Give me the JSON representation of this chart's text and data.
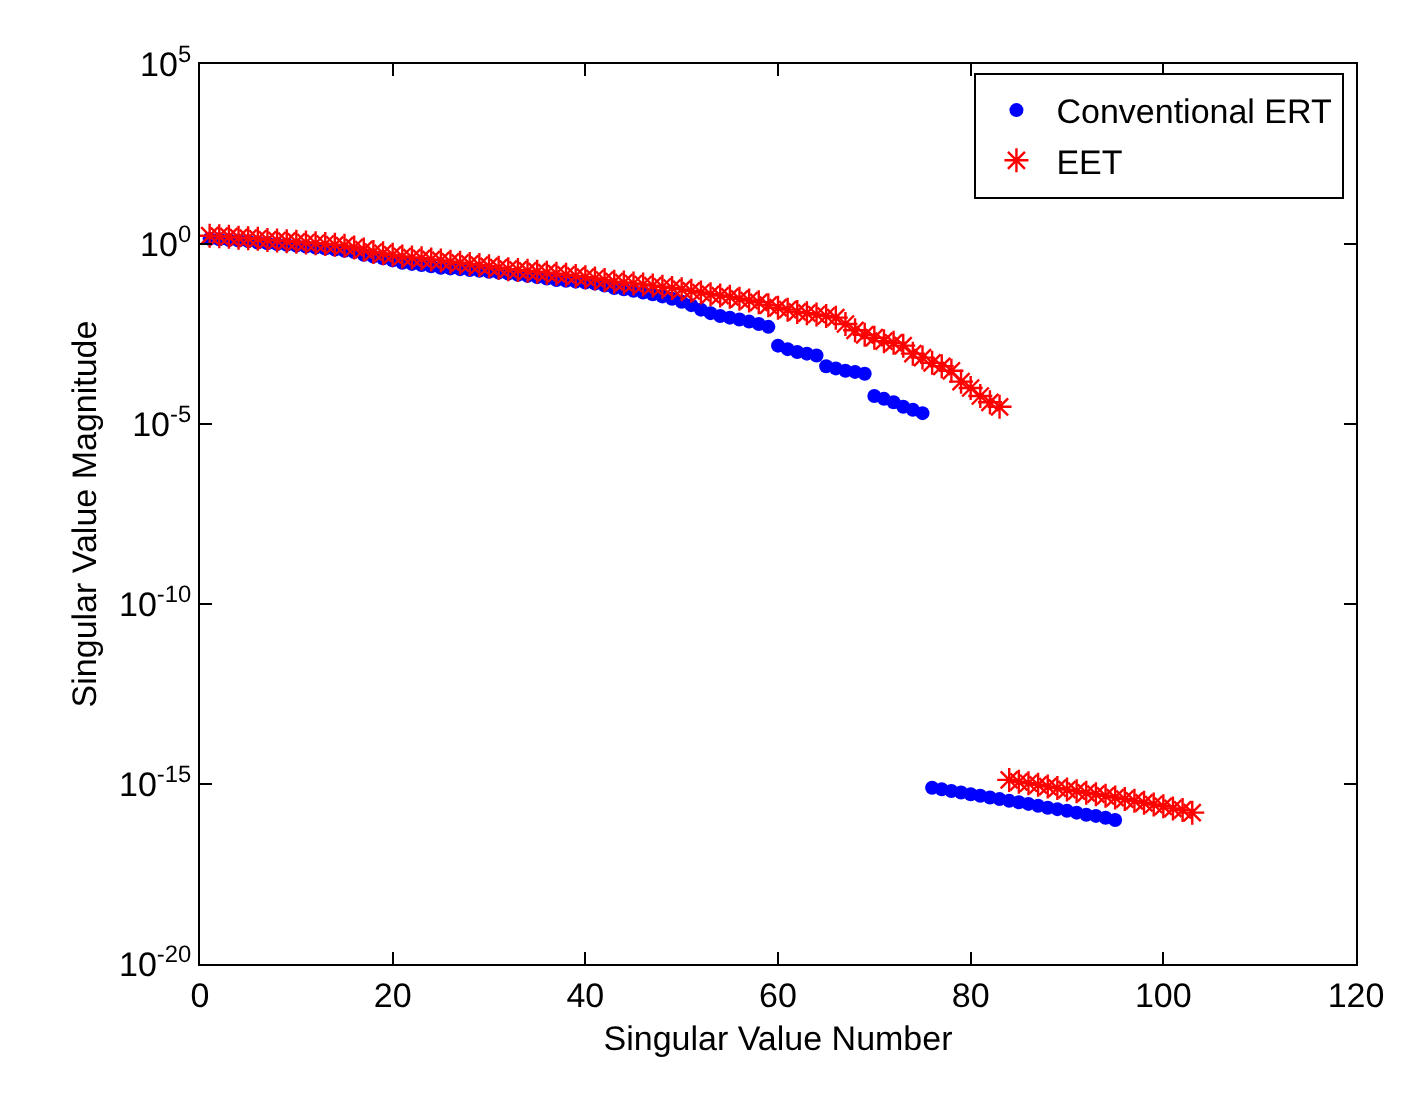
{
  "chart_data": {
    "type": "scatter",
    "xlabel": "Singular Value Number",
    "ylabel": "Singular Value Magnitude",
    "log": "y",
    "grid": false,
    "legend": "top right",
    "xlim": [
      0,
      120
    ],
    "xticks": [
      0,
      20,
      40,
      60,
      80,
      100,
      120
    ],
    "ylim": [
      1e-20,
      100000.0
    ],
    "yticks": [
      {
        "value": 1e-20,
        "label": "10$^{-20}$"
      },
      {
        "value": 1e-15,
        "label": "10$^{-15}$"
      },
      {
        "value": 1e-10,
        "label": "10$^{-10}$"
      },
      {
        "value": 1e-05,
        "label": "10$^{-5}$"
      },
      {
        "value": 1,
        "label": "10$^{0}$"
      },
      {
        "value": 100000.0,
        "label": "10$^{5}$"
      }
    ],
    "series": [
      {
        "name": "Conventional ERT",
        "color": "#0000ff",
        "marker": "circle",
        "x": [
          1,
          2,
          3,
          4,
          5,
          6,
          7,
          8,
          9,
          10,
          11,
          12,
          13,
          14,
          15,
          16,
          17,
          18,
          19,
          20,
          21,
          22,
          23,
          24,
          25,
          26,
          27,
          28,
          29,
          30,
          31,
          32,
          33,
          34,
          35,
          36,
          37,
          38,
          39,
          40,
          41,
          42,
          43,
          44,
          45,
          46,
          47,
          48,
          49,
          50,
          51,
          52,
          53,
          54,
          55,
          56,
          57,
          58,
          59,
          60,
          61,
          62,
          63,
          64,
          65,
          66,
          67,
          68,
          69,
          70,
          71,
          72,
          73,
          74,
          75,
          76,
          77,
          78,
          79,
          80,
          81,
          82,
          83,
          84,
          85,
          86,
          87,
          88,
          89,
          90,
          91,
          92,
          93,
          94,
          95
        ],
        "values": [
          1.4,
          1.35,
          1.3,
          1.25,
          1.2,
          1.1,
          1.05,
          1.0,
          0.95,
          0.9,
          0.85,
          0.8,
          0.75,
          0.7,
          0.65,
          0.6,
          0.5,
          0.45,
          0.4,
          0.35,
          0.3,
          0.28,
          0.26,
          0.24,
          0.22,
          0.21,
          0.2,
          0.19,
          0.18,
          0.17,
          0.16,
          0.15,
          0.14,
          0.13,
          0.12,
          0.11,
          0.1,
          0.095,
          0.09,
          0.085,
          0.08,
          0.07,
          0.06,
          0.055,
          0.05,
          0.045,
          0.04,
          0.035,
          0.03,
          0.025,
          0.02,
          0.015,
          0.012,
          0.01,
          0.009,
          0.008,
          0.007,
          0.006,
          0.005,
          0.0015,
          0.0012,
          0.001,
          0.0009,
          0.0008,
          0.0004,
          0.00035,
          0.0003,
          0.00028,
          0.00025,
          6e-05,
          5e-05,
          4e-05,
          3e-05,
          2.5e-05,
          2e-05,
          7.9e-16,
          7.1e-16,
          6.4e-16,
          5.8e-16,
          5.2e-16,
          4.7e-16,
          4.2e-16,
          3.8e-16,
          3.4e-16,
          3.1e-16,
          2.8e-16,
          2.5e-16,
          2.2e-16,
          2e-16,
          1.8e-16,
          1.6e-16,
          1.4e-16,
          1.3e-16,
          1.15e-16,
          1e-16
        ]
      },
      {
        "name": "EET",
        "color": "#ff0000",
        "marker": "cross",
        "x": [
          1,
          2,
          3,
          4,
          5,
          6,
          7,
          8,
          9,
          10,
          11,
          12,
          13,
          14,
          15,
          16,
          17,
          18,
          19,
          20,
          21,
          22,
          23,
          24,
          25,
          26,
          27,
          28,
          29,
          30,
          31,
          32,
          33,
          34,
          35,
          36,
          37,
          38,
          39,
          40,
          41,
          42,
          43,
          44,
          45,
          46,
          47,
          48,
          49,
          50,
          51,
          52,
          53,
          54,
          55,
          56,
          57,
          58,
          59,
          60,
          61,
          62,
          63,
          64,
          65,
          66,
          67,
          68,
          69,
          70,
          71,
          72,
          73,
          74,
          75,
          76,
          77,
          78,
          79,
          80,
          81,
          82,
          83,
          84,
          85,
          86,
          87,
          88,
          89,
          90,
          91,
          92,
          93,
          94,
          95,
          96,
          97,
          98,
          99,
          100,
          101,
          102,
          103
        ],
        "values": [
          1.7,
          1.65,
          1.6,
          1.5,
          1.45,
          1.4,
          1.3,
          1.25,
          1.2,
          1.15,
          1.1,
          1.05,
          1.0,
          0.95,
          0.9,
          0.8,
          0.7,
          0.6,
          0.55,
          0.5,
          0.45,
          0.42,
          0.4,
          0.37,
          0.35,
          0.32,
          0.3,
          0.28,
          0.26,
          0.24,
          0.22,
          0.2,
          0.19,
          0.18,
          0.17,
          0.16,
          0.15,
          0.14,
          0.13,
          0.12,
          0.11,
          0.1,
          0.09,
          0.085,
          0.08,
          0.075,
          0.07,
          0.065,
          0.06,
          0.055,
          0.05,
          0.045,
          0.04,
          0.037,
          0.034,
          0.03,
          0.027,
          0.024,
          0.02,
          0.017,
          0.015,
          0.013,
          0.012,
          0.011,
          0.01,
          0.009,
          0.006,
          0.004,
          0.003,
          0.0025,
          0.002,
          0.0018,
          0.0015,
          0.0009,
          0.0007,
          0.0005,
          0.0004,
          0.0003,
          0.00015,
          0.0001,
          6e-05,
          4e-05,
          3e-05,
          1.3e-15,
          1.15e-15,
          1.05e-15,
          9.5e-16,
          8.5e-16,
          7.7e-16,
          7e-16,
          6.3e-16,
          5.7e-16,
          5.2e-16,
          4.7e-16,
          4.2e-16,
          3.8e-16,
          3.4e-16,
          3e-16,
          2.7e-16,
          2.4e-16,
          2.1e-16,
          1.9e-16,
          1.6e-16
        ]
      }
    ]
  }
}
